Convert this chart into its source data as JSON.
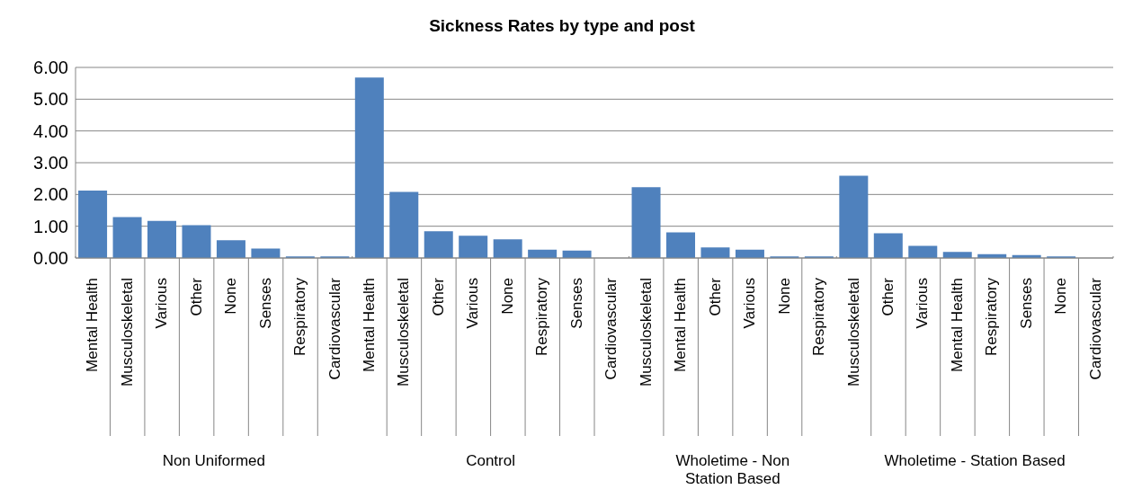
{
  "chart_data": {
    "type": "bar",
    "title": "Sickness Rates by type and post",
    "categories": [
      "Mental Health",
      "Musculoskeletal",
      "Various",
      "Other",
      "None",
      "Senses",
      "Respiratory",
      "Cardiovascular",
      "Mental Health",
      "Musculoskeletal",
      "Other",
      "Various",
      "None",
      "Respiratory",
      "Senses",
      "Cardiovascular",
      "Musculoskeletal",
      "Mental Health",
      "Other",
      "Various",
      "None",
      "Respiratory",
      "Musculoskeletal",
      "Other",
      "Various",
      "Mental Health",
      "Respiratory",
      "Senses",
      "None",
      "Cardiovascular"
    ],
    "values": [
      2.12,
      1.29,
      1.17,
      1.03,
      0.56,
      0.3,
      0.05,
      0.05,
      5.68,
      2.08,
      0.84,
      0.7,
      0.59,
      0.26,
      0.23,
      0,
      2.23,
      0.81,
      0.33,
      0.26,
      0.05,
      0.05,
      2.59,
      0.78,
      0.38,
      0.19,
      0.12,
      0.09,
      0.05,
      0
    ],
    "color": "#4f81bd",
    "ylim": [
      0,
      6
    ],
    "yticks": [
      {
        "value": 0,
        "label": "0.00"
      },
      {
        "value": 1,
        "label": "1.00"
      },
      {
        "value": 2,
        "label": "2.00"
      },
      {
        "value": 3,
        "label": "3.00"
      },
      {
        "value": 4,
        "label": "4.00"
      },
      {
        "value": 5,
        "label": "5.00"
      },
      {
        "value": 6,
        "label": "6.00"
      }
    ],
    "grid": "y",
    "annotations": [
      "Non Uniformed",
      "Control",
      "Wholetime - Non Station Based",
      "Wholetime - Station Based"
    ]
  }
}
